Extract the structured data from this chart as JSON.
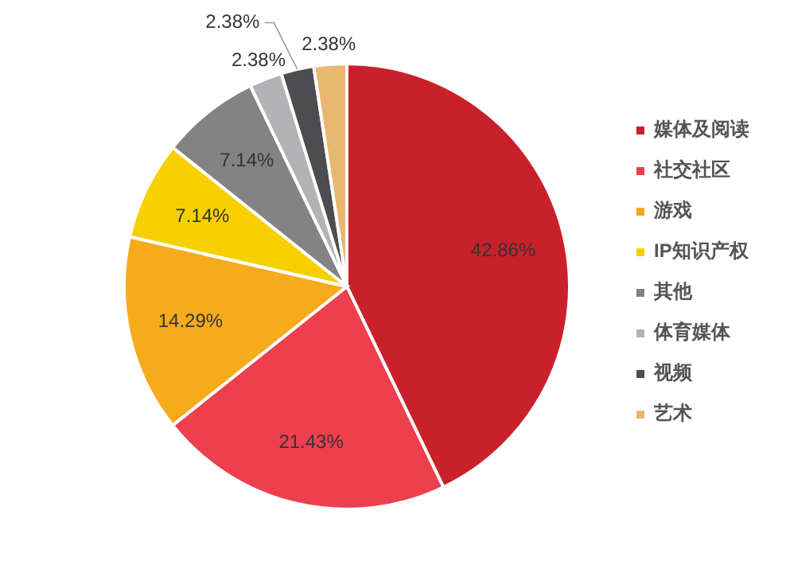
{
  "chart_data": {
    "type": "pie",
    "categories": [
      "媒体及阅读",
      "社交社区",
      "游戏",
      "IP知识产权",
      "其他",
      "体育媒体",
      "视频",
      "艺术"
    ],
    "values": [
      42.86,
      21.43,
      14.29,
      7.14,
      7.14,
      2.38,
      2.38,
      2.38
    ],
    "colors": [
      "#c9212b",
      "#ee3f4e",
      "#f6ab1c",
      "#f7d000",
      "#838383",
      "#b3b3b5",
      "#4d4d4f",
      "#e8b873"
    ],
    "value_labels": [
      "42.86%",
      "21.43%",
      "14.29%",
      "7.14%",
      "7.14%",
      "2.38%",
      "2.38%",
      "2.38%"
    ],
    "legend": "right"
  }
}
